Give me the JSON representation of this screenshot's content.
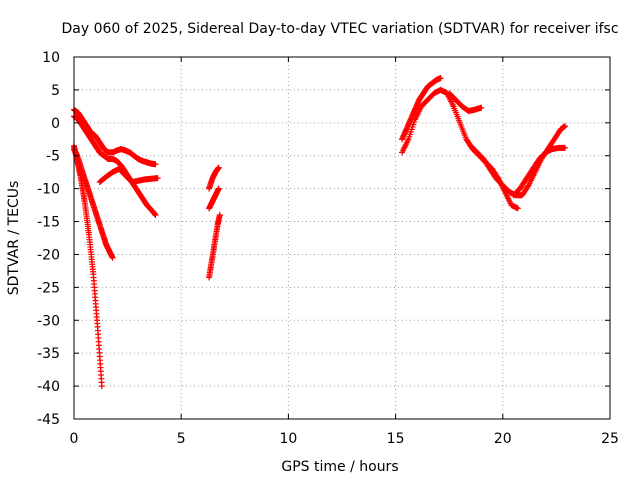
{
  "chart_data": {
    "type": "scatter",
    "title": "Day 060 of 2025, Sidereal Day-to-day VTEC variation (SDTVAR) for receiver ifsc",
    "xlabel": "GPS time / hours",
    "ylabel": "SDTVAR / TECUs",
    "xlim": [
      0,
      25
    ],
    "ylim": [
      -45,
      10
    ],
    "xticks": [
      0,
      5,
      10,
      15,
      20,
      25
    ],
    "yticks": [
      10,
      5,
      0,
      -5,
      -10,
      -15,
      -20,
      -25,
      -30,
      -35,
      -40,
      -45
    ],
    "grid": true,
    "marker": "plus",
    "color": "#ff0000",
    "series": [
      {
        "x": [
          0.0,
          0.2,
          0.4,
          0.6,
          0.8,
          1.0,
          1.2,
          1.4,
          1.6,
          1.8,
          2.0,
          2.2,
          2.4,
          2.6,
          2.8,
          3.0,
          3.2,
          3.4,
          3.6,
          3.8
        ],
        "y": [
          2.0,
          1.5,
          0.5,
          -0.5,
          -1.5,
          -2.0,
          -3.0,
          -4.0,
          -4.5,
          -4.5,
          -4.2,
          -4.0,
          -4.2,
          -4.5,
          -5.0,
          -5.5,
          -5.8,
          -6.0,
          -6.2,
          -6.3
        ]
      },
      {
        "x": [
          0.0,
          0.2,
          0.4,
          0.6,
          0.8,
          1.0,
          1.2,
          1.4,
          1.6,
          1.8,
          2.0,
          2.2,
          2.4,
          2.6,
          2.8,
          3.0,
          3.2,
          3.4,
          3.6,
          3.8
        ],
        "y": [
          1.0,
          0.5,
          -0.5,
          -1.5,
          -2.5,
          -3.5,
          -4.5,
          -5.0,
          -5.5,
          -5.5,
          -5.8,
          -6.5,
          -7.5,
          -8.5,
          -9.5,
          -10.5,
          -11.5,
          -12.5,
          -13.2,
          -14.0
        ]
      },
      {
        "x": [
          0.0,
          0.15,
          0.3,
          0.45,
          0.6,
          0.75,
          0.9,
          1.05,
          1.2,
          1.35,
          1.5,
          1.65,
          1.8
        ],
        "y": [
          -4.0,
          -5.0,
          -6.5,
          -8.0,
          -9.5,
          -11.0,
          -12.5,
          -14.0,
          -15.5,
          -17.0,
          -18.5,
          -19.5,
          -20.5
        ]
      },
      {
        "x": [
          0.0,
          0.1,
          0.2,
          0.3,
          0.4,
          0.5,
          0.6,
          0.7,
          0.8,
          0.9,
          1.0,
          1.1,
          1.2,
          1.3
        ],
        "y": [
          -3.5,
          -5.0,
          -6.5,
          -8.0,
          -10.0,
          -12.0,
          -14.5,
          -17.0,
          -20.0,
          -23.0,
          -27.0,
          -31.0,
          -35.5,
          -40.0
        ]
      },
      {
        "x": [
          1.2,
          1.5,
          1.8,
          2.1,
          2.4,
          2.7,
          3.0,
          3.3,
          3.6,
          3.9
        ],
        "y": [
          -9.0,
          -8.2,
          -7.5,
          -7.0,
          -8.0,
          -9.0,
          -8.8,
          -8.6,
          -8.5,
          -8.4
        ]
      },
      {
        "x": [
          6.3,
          6.45,
          6.6,
          6.75
        ],
        "y": [
          -10.0,
          -8.5,
          -7.5,
          -6.8
        ]
      },
      {
        "x": [
          6.3,
          6.45,
          6.6,
          6.75
        ],
        "y": [
          -13.0,
          -12.0,
          -11.0,
          -10.0
        ]
      },
      {
        "x": [
          6.3,
          6.4,
          6.5,
          6.6,
          6.7,
          6.8
        ],
        "y": [
          -23.5,
          -21.5,
          -19.5,
          -17.5,
          -15.5,
          -14.0
        ]
      },
      {
        "x": [
          15.3,
          15.5,
          15.7,
          15.9,
          16.1,
          16.3,
          16.5,
          16.7,
          16.9,
          17.1
        ],
        "y": [
          -2.5,
          -1.0,
          0.5,
          2.0,
          3.5,
          4.5,
          5.5,
          6.0,
          6.5,
          6.8
        ]
      },
      {
        "x": [
          15.3,
          15.6,
          15.9,
          16.2,
          16.5,
          16.8,
          17.1,
          17.4,
          17.7,
          18.0,
          18.3,
          18.6,
          18.9,
          19.2,
          19.5,
          19.8,
          20.1,
          20.4,
          20.7
        ],
        "y": [
          -4.5,
          -2.5,
          0.5,
          2.5,
          3.5,
          4.5,
          5.0,
          4.5,
          2.5,
          0.0,
          -2.5,
          -4.0,
          -5.0,
          -6.0,
          -7.0,
          -8.5,
          -10.5,
          -12.5,
          -13.0
        ]
      },
      {
        "x": [
          17.5,
          17.8,
          18.1,
          18.4,
          18.7,
          19.0
        ],
        "y": [
          4.5,
          3.5,
          2.5,
          1.8,
          2.0,
          2.3
        ]
      },
      {
        "x": [
          18.5,
          18.8,
          19.1,
          19.4,
          19.7,
          20.0,
          20.3,
          20.6,
          20.9,
          21.2,
          21.5,
          21.8,
          22.1,
          22.4,
          22.7,
          22.9
        ],
        "y": [
          -3.5,
          -4.5,
          -5.5,
          -7.0,
          -8.5,
          -9.5,
          -10.5,
          -11.0,
          -11.0,
          -9.5,
          -7.5,
          -5.5,
          -4.0,
          -2.5,
          -1.0,
          -0.5
        ]
      },
      {
        "x": [
          20.5,
          20.8,
          21.1,
          21.4,
          21.7,
          22.0,
          22.3,
          22.6,
          22.9
        ],
        "y": [
          -11.0,
          -10.0,
          -8.5,
          -7.0,
          -5.5,
          -4.5,
          -4.0,
          -3.8,
          -3.8
        ]
      }
    ]
  }
}
